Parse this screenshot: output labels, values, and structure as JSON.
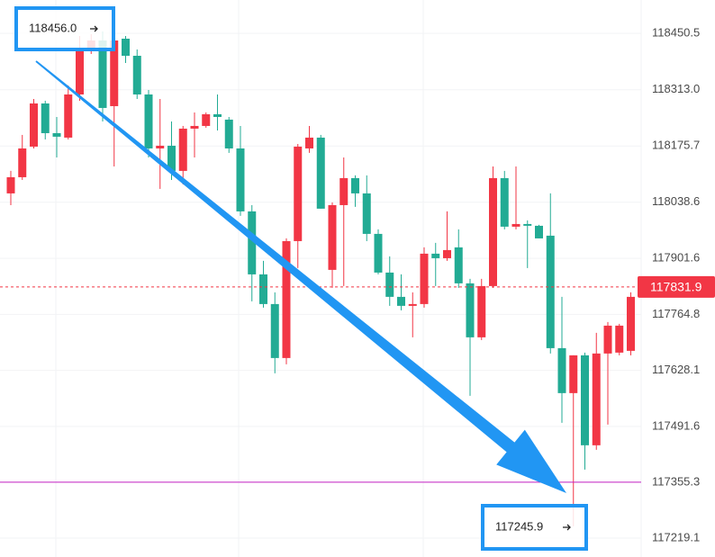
{
  "chart_data": {
    "type": "candlestick",
    "candles": [
      [
        118060.1,
        118115.0,
        118031.5,
        118099.6
      ],
      [
        118099.6,
        118202.8,
        118093.0,
        118169.8
      ],
      [
        118174.2,
        118290.5,
        118169.8,
        118279.6
      ],
      [
        118279.6,
        118286.2,
        118191.8,
        118207.1
      ],
      [
        118207.1,
        118246.6,
        118147.9,
        118198.4
      ],
      [
        118196.2,
        118323.5,
        118191.8,
        118301.5
      ],
      [
        118301.5,
        118444.2,
        118286.2,
        118411.3
      ],
      [
        118411.3,
        118448.6,
        118400.3,
        118433.2
      ],
      [
        118433.2,
        118455.2,
        118235.7,
        118268.6
      ],
      [
        118273.0,
        118444.2,
        118125.9,
        118433.2
      ],
      [
        118437.6,
        118444.2,
        118378.4,
        118395.9
      ],
      [
        118395.9,
        118411.3,
        118290.5,
        118301.5
      ],
      [
        118301.5,
        118312.5,
        118147.9,
        118169.8
      ],
      [
        118169.8,
        118290.5,
        118071.1,
        118176.4
      ],
      [
        118176.4,
        118235.7,
        118093.0,
        118115.0
      ],
      [
        118115.0,
        118224.7,
        118082.0,
        118218.1
      ],
      [
        118218.1,
        118257.6,
        118147.9,
        118224.7
      ],
      [
        118224.7,
        118257.6,
        118220.3,
        118253.2
      ],
      [
        118253.2,
        118301.5,
        118213.7,
        118246.6
      ],
      [
        118240.1,
        118246.6,
        118158.9,
        118169.8
      ],
      [
        118169.8,
        118224.7,
        118005.2,
        118016.2
      ],
      [
        118016.2,
        118031.5,
        117796.7,
        117862.5
      ],
      [
        117862.5,
        117895.5,
        117781.3,
        117790.1
      ],
      [
        117790.1,
        117818.6,
        117621.1,
        117658.4
      ],
      [
        117658.4,
        117950.3,
        117643.0,
        117943.7
      ],
      [
        117943.7,
        118180.8,
        117877.9,
        118174.2
      ],
      [
        118169.8,
        118224.7,
        118158.9,
        118196.2
      ],
      [
        118196.2,
        118202.8,
        118022.8,
        118022.8
      ],
      [
        117873.5,
        118038.1,
        117829.6,
        118031.5
      ],
      [
        118031.5,
        118147.9,
        117834.0,
        118097.4
      ],
      [
        118097.4,
        118104.0,
        118027.2,
        118060.1
      ],
      [
        118060.1,
        118104.0,
        117943.7,
        117961.3
      ],
      [
        117961.3,
        117972.3,
        117862.5,
        117866.9
      ],
      [
        117866.9,
        117906.4,
        117785.7,
        117807.7
      ],
      [
        117807.7,
        117862.5,
        117774.7,
        117785.7
      ],
      [
        117785.7,
        117818.6,
        117708.9,
        117790.1
      ],
      [
        117790.1,
        117928.4,
        117781.3,
        117913.0
      ],
      [
        117913.0,
        117939.4,
        117834.0,
        117902.0
      ],
      [
        117902.0,
        118016.2,
        117895.5,
        117921.8
      ],
      [
        117928.4,
        117972.3,
        117829.6,
        117840.6
      ],
      [
        117840.6,
        117851.6,
        117566.2,
        117708.9
      ],
      [
        117708.9,
        117851.6,
        117702.3,
        117834.0
      ],
      [
        117834.0,
        118125.9,
        117829.6,
        118097.4
      ],
      [
        118097.4,
        118115.0,
        117972.3,
        117978.9
      ],
      [
        117978.9,
        118125.9,
        117972.3,
        117985.4
      ],
      [
        117985.4,
        117994.2,
        117877.9,
        117981.1
      ],
      [
        117981.1,
        117983.3,
        117950.3,
        117950.3
      ],
      [
        117956.9,
        118060.1,
        117669.4,
        117682.5
      ],
      [
        117682.5,
        117807.7,
        117500.4,
        117572.8
      ],
      [
        117572.8,
        117665.0,
        117247.9,
        117665.0
      ],
      [
        117665.0,
        117671.6,
        117386.2,
        117445.5
      ],
      [
        117445.5,
        117719.9,
        117434.5,
        117669.4
      ],
      [
        117669.4,
        117746.2,
        117496.0,
        117737.4
      ],
      [
        117671.6,
        117741.8,
        117665.0,
        117737.4
      ],
      [
        117675.9,
        117818.6,
        117665.0,
        117807.7
      ],
      [
        117807.7,
        117812.1,
        117759.2,
        117764.8
      ]
    ],
    "up_color": "#f23645",
    "down_color": "#22ab94",
    "ylim": [
      117172.9,
      118532.0
    ],
    "yticks": [
      118450.5,
      {
        "value": 118313.0,
        "label": "118313.0"
      },
      118175.7,
      118038.6,
      117901.6,
      117764.8,
      117628.1,
      117491.6,
      117355.3,
      117219.1
    ],
    "last_price": 117831.9,
    "level_line": 117355.3,
    "annotations": [
      {
        "label": "118456.0"
      },
      {
        "label": "117245.9"
      }
    ],
    "grid": true
  }
}
